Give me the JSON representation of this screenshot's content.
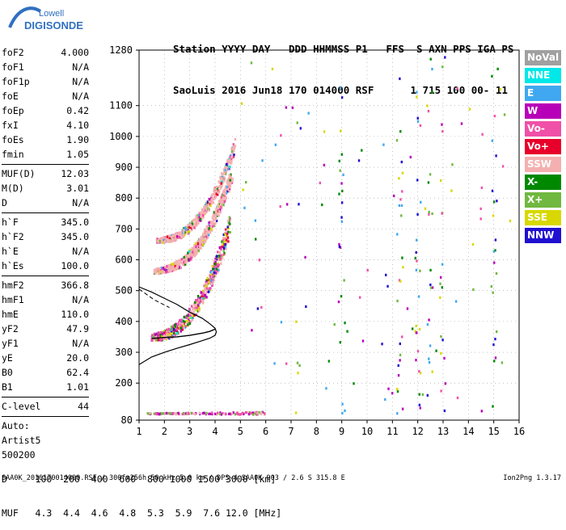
{
  "logo": {
    "line1": "Lowell",
    "line2": "DIGISONDE"
  },
  "header": {
    "line1": "Station YYYY DAY   DDD HHMMSS P1   FFS  S AXN PPS IGA PS",
    "line2": "SaoLuis 2016 Jun18 170 014000 RSF      1 715 100 00- 11"
  },
  "params": {
    "group1": [
      {
        "name": "foF2",
        "value": "4.000"
      },
      {
        "name": "foF1",
        "value": "N/A"
      },
      {
        "name": "foF1p",
        "value": "N/A"
      },
      {
        "name": "foE",
        "value": "N/A"
      },
      {
        "name": "foEp",
        "value": "0.42"
      },
      {
        "name": "fxI",
        "value": "4.10"
      },
      {
        "name": "foEs",
        "value": "1.90"
      },
      {
        "name": "fmin",
        "value": "1.05"
      }
    ],
    "group2": [
      {
        "name": "MUF(D)",
        "value": "12.03"
      },
      {
        "name": "M(D)",
        "value": "3.01"
      },
      {
        "name": "D",
        "value": "N/A"
      }
    ],
    "group3": [
      {
        "name": "h`F",
        "value": "345.0"
      },
      {
        "name": "h`F2",
        "value": "345.0"
      },
      {
        "name": "h`E",
        "value": "N/A"
      },
      {
        "name": "h`Es",
        "value": "100.0"
      }
    ],
    "group4": [
      {
        "name": "hmF2",
        "value": "366.8"
      },
      {
        "name": "hmF1",
        "value": "N/A"
      },
      {
        "name": "hmE",
        "value": "110.0"
      },
      {
        "name": "yF2",
        "value": "47.9"
      },
      {
        "name": "yF1",
        "value": "N/A"
      },
      {
        "name": "yE",
        "value": "20.0"
      },
      {
        "name": "B0",
        "value": "62.4"
      },
      {
        "name": "B1",
        "value": "1.01"
      }
    ],
    "clevel": {
      "name": "C-level",
      "value": "44"
    },
    "auto": [
      "Auto:",
      "Artist5",
      "500200"
    ]
  },
  "legend": [
    {
      "label": "NoVal",
      "color": "#a0a0a0"
    },
    {
      "label": "NNE",
      "color": "#00e8e8"
    },
    {
      "label": "E",
      "color": "#40a8f0"
    },
    {
      "label": "W",
      "color": "#b800b8"
    },
    {
      "label": "Vo-",
      "color": "#f050a8"
    },
    {
      "label": "Vo+",
      "color": "#e8002a"
    },
    {
      "label": "SSW",
      "color": "#f4b0b0"
    },
    {
      "label": "X-",
      "color": "#008800"
    },
    {
      "label": "X+",
      "color": "#70b840"
    },
    {
      "label": "SSE",
      "color": "#d8d800"
    },
    {
      "label": "NNW",
      "color": "#2010d0"
    }
  ],
  "footer": {
    "d_row": "D     100  200  400  600  800 1000 1500 3000 [km]",
    "muf_row": "MUF   4.3  4.4  4.6  4.8  5.3  5.9  7.6 12.0 [MHz]",
    "bottom": "SAA0K_2016170014000.RSF / 300fx256h 50 kHz 5.0 km / DPS-4 SAA0K 903 / 2.6 S 315.8 E",
    "version": "Ion2Png 1.3.17"
  },
  "chart_data": {
    "type": "scatter",
    "xlim": [
      1,
      16
    ],
    "ylim": [
      80,
      1280
    ],
    "xticks": [
      1,
      2,
      3,
      4,
      5,
      6,
      7,
      8,
      9,
      10,
      11,
      12,
      13,
      14,
      15,
      16
    ],
    "yticks": [
      80,
      200,
      300,
      400,
      500,
      600,
      700,
      800,
      900,
      1000,
      1100,
      1280
    ],
    "grid": true,
    "profile": {
      "x": [
        1.0,
        1.5,
        2.0,
        2.5,
        3.0,
        3.5,
        3.8,
        4.0,
        4.05,
        4.0,
        3.8,
        3.5,
        3.0,
        2.5,
        2.0,
        1.5,
        1.0
      ],
      "y": [
        260,
        285,
        300,
        313,
        325,
        338,
        346,
        355,
        366,
        378,
        392,
        410,
        430,
        455,
        475,
        495,
        512
      ]
    },
    "virtual_height_trace": {
      "x": [
        1.5,
        2.0,
        2.5,
        3.0,
        3.5,
        3.8,
        4.0
      ],
      "y": [
        345,
        348,
        350,
        355,
        362,
        368,
        375
      ]
    },
    "traces": [
      {
        "name": "F-trace",
        "x0": 1.5,
        "x1": 4.6,
        "y0": 345,
        "y1": 700,
        "spread": 55
      },
      {
        "name": "2F-trace",
        "x0": 1.6,
        "x1": 4.7,
        "y0": 560,
        "y1": 870,
        "spread": 40
      },
      {
        "name": "3F-trace",
        "x0": 1.7,
        "x1": 4.8,
        "y0": 660,
        "y1": 960,
        "spread": 35
      },
      {
        "name": "Es-trace",
        "x0": 1.3,
        "x1": 6.0,
        "y0": 100,
        "y1": 100,
        "spread": 6
      }
    ]
  }
}
